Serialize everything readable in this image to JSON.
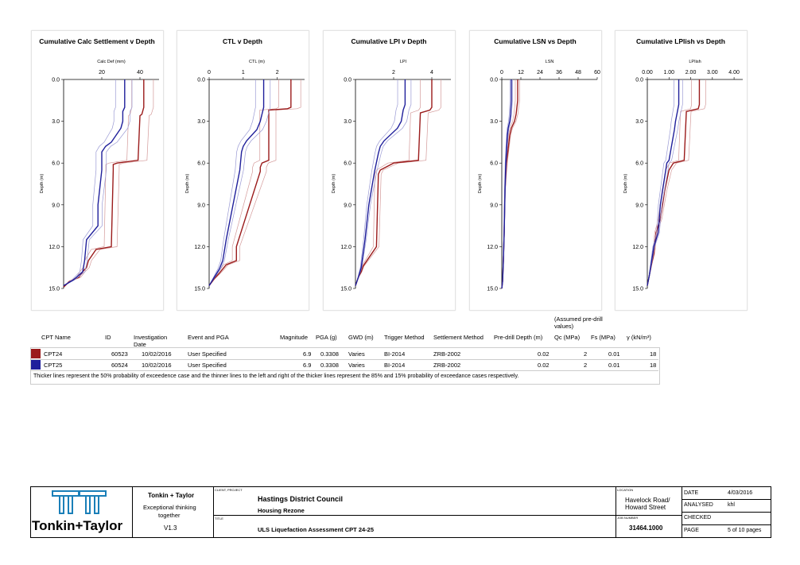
{
  "colors": {
    "cpt24": "#9b1b1b",
    "cpt25": "#1f1f9b",
    "cpt24_thin": "#d49a9a",
    "cpt25_thin": "#9a9ad4"
  },
  "depth_ticks": [
    "0.0",
    "3.0",
    "6.0",
    "9.0",
    "12.0",
    "15.0"
  ],
  "depth_label": "Depth (m)",
  "chart_data": [
    {
      "type": "line",
      "title": "Cumulative Calc Settlement v Depth",
      "xlabel": "Calc Def (mm)",
      "ylabel": "Depth (m)",
      "xlim": [
        0,
        50
      ],
      "ylim": [
        0,
        15
      ],
      "xticks": [
        20,
        40
      ],
      "xtick_labels": [
        "20",
        "40"
      ],
      "series": [
        {
          "name": "CPT24",
          "x": [
            42,
            42,
            41,
            40,
            39,
            28,
            26,
            26,
            25,
            17,
            13,
            12,
            10,
            8,
            3,
            0
          ],
          "y": [
            0,
            2,
            2.5,
            2.6,
            5.8,
            6,
            6.1,
            6.5,
            12,
            12.2,
            13,
            13.5,
            13.8,
            14.2,
            14.5,
            14.9
          ]
        },
        {
          "name": "CPT25",
          "x": [
            32,
            32,
            31,
            31,
            30,
            25,
            22,
            20,
            20,
            18,
            18,
            12,
            11,
            10,
            5,
            0
          ],
          "y": [
            0,
            2,
            2.3,
            3,
            3.5,
            4.5,
            4.8,
            5.2,
            6.5,
            9,
            10.5,
            11.5,
            13,
            13.8,
            14.4,
            14.8
          ]
        }
      ]
    },
    {
      "type": "line",
      "title": "CTL v Depth",
      "xlabel": "CTL (m)",
      "ylabel": "Depth (m)",
      "xlim": [
        0,
        2.8
      ],
      "ylim": [
        0,
        15
      ],
      "xticks": [
        0,
        1,
        2
      ],
      "xtick_labels": [
        "0",
        "1",
        "2"
      ],
      "series": [
        {
          "name": "CPT24",
          "x": [
            2.4,
            2.4,
            2.3,
            1.75,
            1.75,
            1.55,
            1.5,
            1.5,
            0.8,
            0.8,
            0.5,
            0.4,
            0.3,
            0.15,
            0
          ],
          "y": [
            0,
            2,
            2.1,
            2.2,
            5.8,
            6,
            6.3,
            6.6,
            12,
            13,
            13.3,
            13.6,
            13.9,
            14.3,
            14.8
          ]
        },
        {
          "name": "CPT25",
          "x": [
            1.6,
            1.6,
            1.55,
            1.5,
            1.4,
            1.1,
            1.0,
            0.95,
            0.9,
            0.7,
            0.5,
            0.4,
            0.3,
            0.15,
            0
          ],
          "y": [
            0,
            2,
            2.5,
            3,
            3.6,
            4.4,
            4.8,
            5.2,
            6.5,
            9,
            11.5,
            13,
            13.6,
            14.2,
            14.8
          ]
        }
      ]
    },
    {
      "type": "line",
      "title": "Cumulative LPI v Depth",
      "xlabel": "LPI",
      "ylabel": "Depth (m)",
      "xlim": [
        0,
        5
      ],
      "ylim": [
        0,
        15
      ],
      "xticks": [
        2,
        4
      ],
      "xtick_labels": [
        "2",
        "4"
      ],
      "series": [
        {
          "name": "CPT24",
          "x": [
            4,
            4,
            3.9,
            3.4,
            3.3,
            2.0,
            1.3,
            1.2,
            1.1,
            0.6,
            0.4,
            0.3,
            0.15,
            0
          ],
          "y": [
            0,
            2,
            2.2,
            2.4,
            5.8,
            6,
            6.5,
            6.8,
            12,
            13,
            13.4,
            13.8,
            14.2,
            14.8
          ]
        },
        {
          "name": "CPT25",
          "x": [
            2.6,
            2.6,
            2.5,
            2.4,
            2.2,
            1.5,
            1.3,
            1.2,
            1.0,
            0.7,
            0.5,
            0.3,
            0.15,
            0
          ],
          "y": [
            0,
            1.8,
            2.2,
            3,
            3.5,
            4.4,
            4.8,
            5.3,
            6.6,
            9,
            11.5,
            13.5,
            14.2,
            14.8
          ]
        }
      ]
    },
    {
      "type": "line",
      "title": "Cumulative LSN vs Depth",
      "xlabel": "LSN",
      "ylabel": "Depth (m)",
      "xlim": [
        0,
        60
      ],
      "ylim": [
        0,
        15
      ],
      "xticks": [
        0,
        12,
        24,
        36,
        48,
        60
      ],
      "xtick_labels": [
        "0",
        "12",
        "24",
        "36",
        "48",
        "60"
      ],
      "series": [
        {
          "name": "CPT24",
          "x": [
            10,
            10,
            9,
            8,
            6,
            5,
            4,
            3,
            2,
            1.5,
            1,
            0.5,
            0
          ],
          "y": [
            0,
            1.5,
            2.5,
            3,
            3.5,
            4,
            5,
            6,
            8,
            11,
            13,
            14.5,
            15
          ]
        },
        {
          "name": "CPT25",
          "x": [
            6,
            6,
            5.5,
            5,
            4,
            3.5,
            3,
            2.5,
            2,
            1.5,
            1,
            0.5,
            0
          ],
          "y": [
            0,
            1.5,
            2.5,
            3,
            3.5,
            4,
            5,
            6,
            8,
            11,
            13,
            14.5,
            15
          ]
        }
      ]
    },
    {
      "type": "line",
      "title": "Cumulative LPIish vs Depth",
      "xlabel": "LPIish",
      "ylabel": "Depth (m)",
      "xlim": [
        0,
        4.4
      ],
      "ylim": [
        0,
        15
      ],
      "xticks": [
        0,
        1,
        2,
        3,
        4
      ],
      "xtick_labels": [
        "0.00",
        "1.00",
        "2.00",
        "3.00",
        "4.00"
      ],
      "series": [
        {
          "name": "CPT24",
          "x": [
            2.4,
            2.4,
            2.35,
            1.8,
            1.7,
            1.2,
            1.0,
            0.8,
            0.6,
            0.4,
            0.3,
            0.2,
            0.1,
            0
          ],
          "y": [
            0,
            1.8,
            2.1,
            2.3,
            5.8,
            6,
            6.5,
            8,
            10,
            11,
            12.5,
            13.2,
            14,
            14.8
          ]
        },
        {
          "name": "CPT25",
          "x": [
            1.45,
            1.45,
            1.4,
            1.3,
            1.25,
            1.0,
            0.9,
            0.85,
            0.6,
            0.5,
            0.3,
            0.2,
            0.1,
            0
          ],
          "y": [
            0,
            1.8,
            2.2,
            3,
            3.6,
            5.8,
            6,
            6.5,
            9,
            11,
            12,
            13,
            14,
            14.8
          ]
        }
      ]
    }
  ],
  "table": {
    "headers": {
      "cpt_name": "CPT Name",
      "id": "ID",
      "investigation_date_1": "Investigation",
      "investigation_date_2": "Date",
      "event_pga": "Event and PGA",
      "magnitude": "Magnitude",
      "pga": "PGA (g)",
      "gwd": "GWD (m)",
      "trigger": "Trigger Method",
      "settlement": "Settlement Method",
      "predrill": "Pre-drill Depth (m)",
      "assumed_1": "(Assumed pre-drill",
      "assumed_2": "values)",
      "qc": "Qc (MPa)",
      "fs": "Fs (MPa)",
      "gamma": "γ (kN/m³)"
    },
    "rows": [
      {
        "name": "CPT24",
        "id": "60523",
        "date": "10/02/2016",
        "event": "User Specified",
        "magnitude": "6.9",
        "pga": "0.3308",
        "gwd": "Varies",
        "trigger": "BI-2014",
        "settlement": "ZRB-2002",
        "predrill": "0.02",
        "qc": "2",
        "fs": "0.01",
        "gamma": "18"
      },
      {
        "name": "CPT25",
        "id": "60524",
        "date": "10/02/2016",
        "event": "User Specified",
        "magnitude": "6.9",
        "pga": "0.3308",
        "gwd": "Varies",
        "trigger": "BI-2014",
        "settlement": "ZRB-2002",
        "predrill": "0.02",
        "qc": "2",
        "fs": "0.01",
        "gamma": "18"
      }
    ],
    "note": "Thicker lines represent the 50% probability of exceedence case and the thinner lines to the left and right of the thicker lines represent the 85% and 15% probability of exceedance cases respectively."
  },
  "title_block": {
    "logo_text": "Tonkin+Taylor",
    "company": "Tonkin + Taylor",
    "tagline_1": "Exceptional thinking",
    "tagline_2": "together",
    "version": "V1.3",
    "client_label": "CLIENT, PROJECT",
    "client": "Hastings District Council",
    "project": "Housing Rezone",
    "title_label": "TITLE",
    "title": "ULS Liquefaction Assessment CPT 24-25",
    "location_label": "LOCATION",
    "location_1": "Havelock Road/",
    "location_2": "Howard Street",
    "job_label": "JOB NUMBER",
    "job_number": "31464.1000",
    "date_label": "DATE",
    "date": "4/03/2016",
    "analysed_label": "ANALYSED",
    "analysed": "khl",
    "checked_label": "CHECKED",
    "checked": "",
    "page_label": "PAGE",
    "page": "5 of 10 pages"
  }
}
